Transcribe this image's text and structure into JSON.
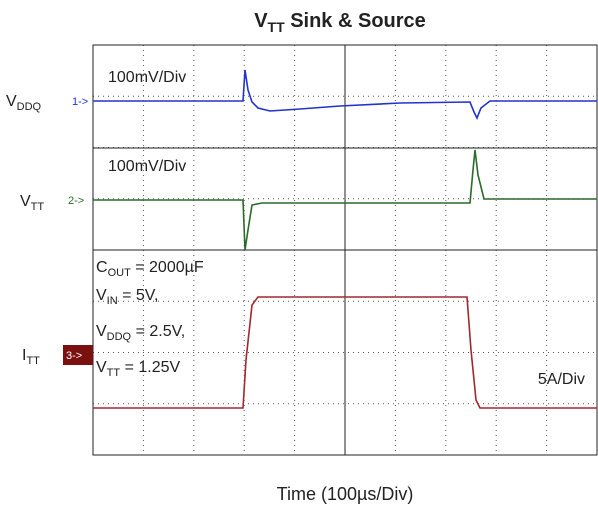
{
  "title": {
    "main": "V",
    "sub": "TT",
    "rest": " Sink & Source"
  },
  "channels": [
    {
      "label": {
        "main": "V",
        "sub": "DDQ"
      },
      "marker": "1->",
      "scale": "100mV/Div"
    },
    {
      "label": {
        "main": "V",
        "sub": "TT"
      },
      "marker": "2->",
      "scale": "100mV/Div"
    },
    {
      "label": {
        "main": "I",
        "sub": "TT"
      },
      "marker": "3->",
      "scale": "5A/Div"
    }
  ],
  "conditions": [
    {
      "main": "C",
      "sub": "OUT",
      "rest": " = 2000µF"
    },
    {
      "main": "V",
      "sub": "IN",
      "rest": " = 5V,"
    },
    {
      "main": "V",
      "sub": "DDQ",
      "rest": " = 2.5V,"
    },
    {
      "main": "V",
      "sub": "TT",
      "rest": " = 1.25V"
    }
  ],
  "x_label": "Time (100µs/Div)"
}
